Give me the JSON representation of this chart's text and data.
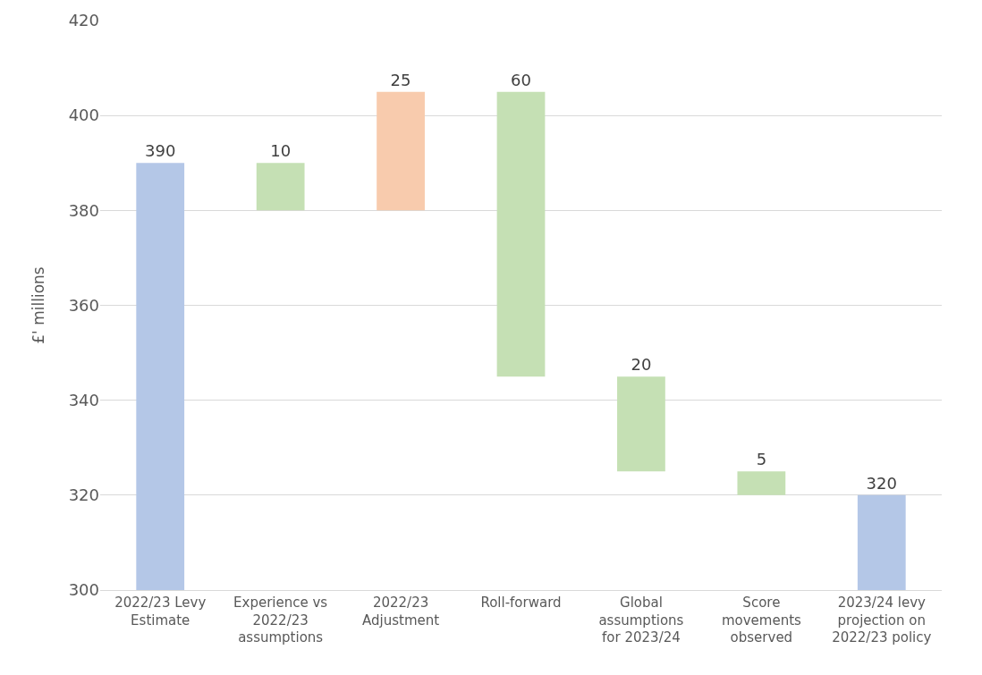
{
  "chart_data": {
    "type": "bar",
    "ylabel": "£' millions",
    "categories": [
      "2022/23 Levy Estimate",
      "Experience vs 2022/23 assumptions",
      "2022/23 Adjustment",
      "Roll-forward",
      "Global assumptions for 2023/24",
      "Score movements observed",
      "2023/24 levy projection on 2022/23 policy"
    ],
    "values": [
      390,
      10,
      25,
      60,
      20,
      5,
      320
    ],
    "base": [
      null,
      380,
      380,
      345,
      325,
      320,
      null
    ],
    "colors": [
      "#b4c7e7",
      "#c5e0b4",
      "#f8cbad",
      "#c5e0b4",
      "#c5e0b4",
      "#c5e0b4",
      "#b4c7e7"
    ],
    "ylim": [
      300,
      420
    ],
    "yticks": [
      300,
      320,
      340,
      360,
      380,
      400,
      420
    ],
    "grid": "y",
    "data_labels": true
  }
}
